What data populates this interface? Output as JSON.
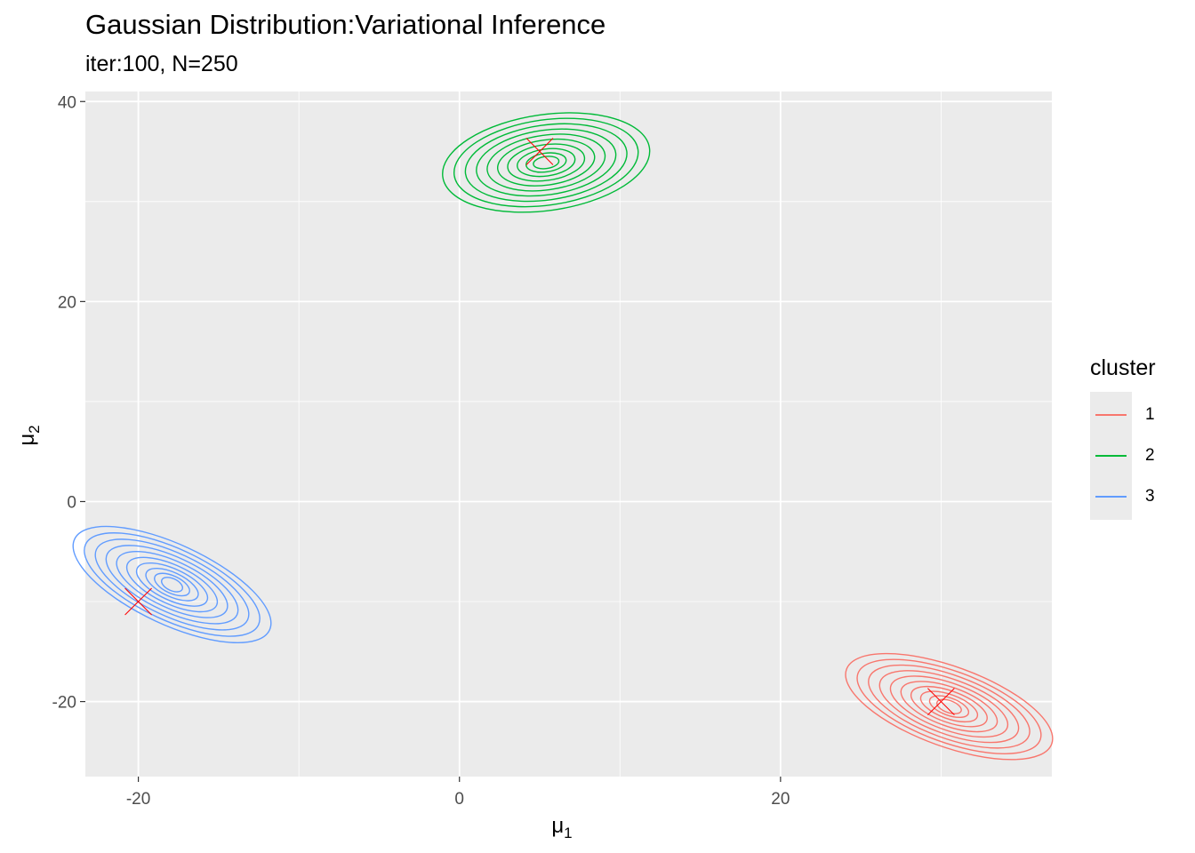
{
  "chart_data": {
    "type": "contour",
    "title": "Gaussian Distribution:Variational Inference",
    "subtitle": "iter:100, N=250",
    "xlabel": "μ",
    "xlabel_sub": "1",
    "ylabel": "μ",
    "ylabel_sub": "2",
    "xlim": [
      -23.3,
      36.9
    ],
    "ylim": [
      -27.5,
      41.0
    ],
    "x_ticks": [
      -20,
      0,
      20
    ],
    "y_ticks": [
      -20,
      0,
      20,
      40
    ],
    "grid": true,
    "legend_title": "cluster",
    "legend_position": "right",
    "panel_color": "#ebebeb",
    "true_means_color": "#ff0000",
    "series": [
      {
        "name": "1",
        "color": "#F8766D",
        "center": [
          30.5,
          -20.5
        ],
        "radius_x": [
          0.8,
          6.8
        ],
        "radius_y": [
          0.6,
          4.0
        ],
        "tilt": -20,
        "levels": 10
      },
      {
        "name": "2",
        "color": "#00BA38",
        "center": [
          5.4,
          33.9
        ],
        "radius_x": [
          0.8,
          6.5
        ],
        "radius_y": [
          0.6,
          4.8
        ],
        "tilt": 8,
        "levels": 10
      },
      {
        "name": "3",
        "color": "#619CFF",
        "center": [
          -17.9,
          -8.3
        ],
        "radius_x": [
          0.7,
          6.7
        ],
        "radius_y": [
          0.6,
          4.0
        ],
        "tilt": -25,
        "levels": 10
      }
    ],
    "true_means": [
      {
        "x": 5.0,
        "y": 35.0
      },
      {
        "x": -20.0,
        "y": -10.0
      },
      {
        "x": 30.0,
        "y": -20.0
      }
    ]
  }
}
